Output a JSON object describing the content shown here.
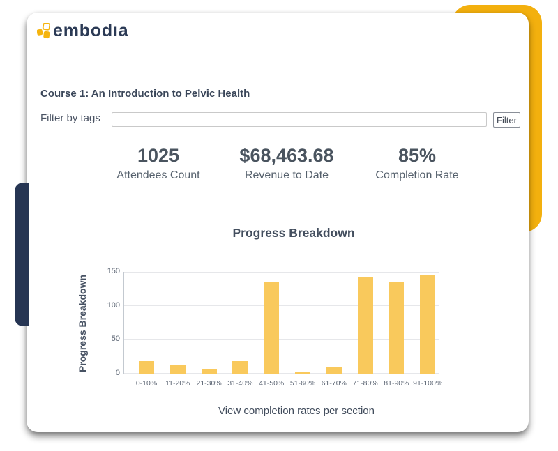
{
  "brand": {
    "logo_text": "embodıa"
  },
  "page": {
    "heading": "Course 1: An Introduction to Pelvic Health"
  },
  "filter": {
    "label": "Filter by tags",
    "input_value": "",
    "button_label": "Filter"
  },
  "stats": [
    {
      "value": "1025",
      "label": "Attendees Count"
    },
    {
      "value": "$68,463.68",
      "label": "Revenue to Date"
    },
    {
      "value": "85%",
      "label": "Completion Rate"
    }
  ],
  "chart_data": {
    "type": "bar",
    "title": "Progress Breakdown",
    "ylabel": "Progress Breakdown",
    "xlabel": "",
    "categories": [
      "0-10%",
      "11-20%",
      "21-30%",
      "31-40%",
      "41-50%",
      "51-60%",
      "61-70%",
      "71-80%",
      "81-90%",
      "91-100%"
    ],
    "values": [
      18,
      13,
      7,
      18,
      136,
      3,
      9,
      142,
      136,
      146
    ],
    "ylim": [
      0,
      150
    ],
    "yticks": [
      0,
      50,
      100,
      150
    ],
    "grid": true,
    "legend": false,
    "bar_color": "#F9C95C"
  },
  "footer": {
    "link_label": "View completion rates per section"
  },
  "colors": {
    "accent_yellow": "#F3B00E",
    "accent_navy": "#263553",
    "bar_yellow": "#F9C95C",
    "text_dark": "#3A4659"
  }
}
